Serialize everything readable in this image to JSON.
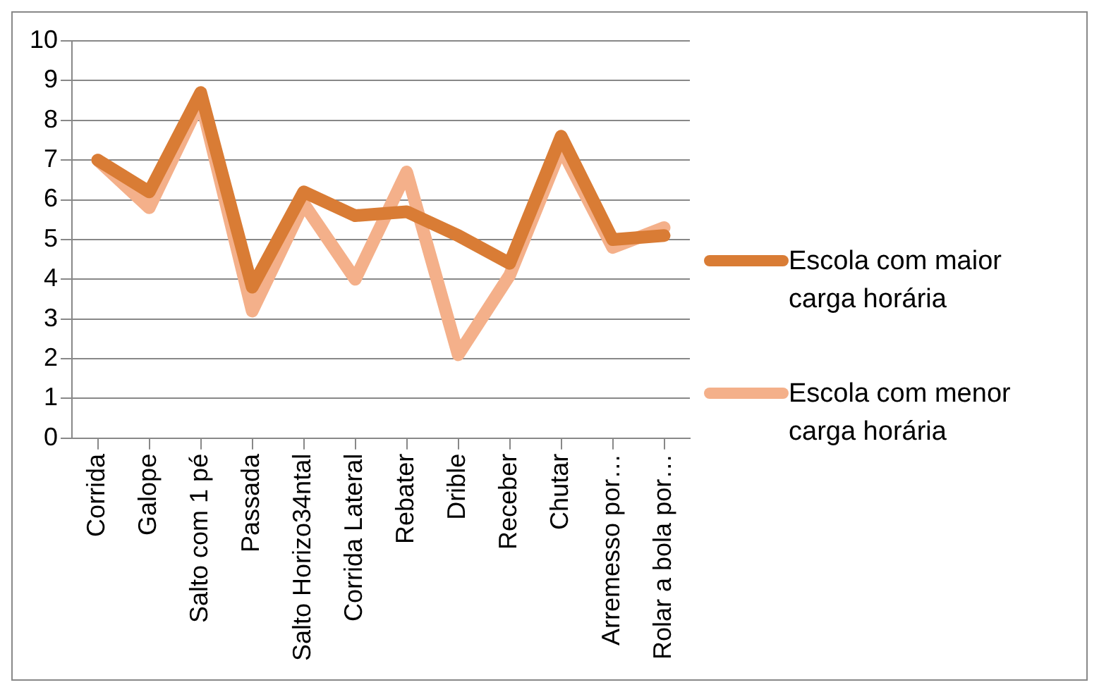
{
  "chart_data": {
    "type": "line",
    "categories": [
      "Corrida",
      "Galope",
      "Salto com 1 pé",
      "Passada",
      "Salto Horizo34ntal",
      "Corrida Lateral",
      "Rebater",
      "Drible",
      "Receber",
      "Chutar",
      "Arremesso por…",
      "Rolar a bola por…"
    ],
    "series": [
      {
        "name": "Escola com maior carga horária",
        "color": "#d97c35",
        "values": [
          7,
          6.2,
          8.7,
          3.8,
          6.2,
          5.6,
          5.7,
          5.1,
          4.4,
          7.6,
          5.0,
          5.1
        ]
      },
      {
        "name": "Escola com menor carga horária",
        "color": "#f4b08a",
        "values": [
          7,
          5.8,
          8.5,
          3.2,
          5.9,
          4.0,
          6.7,
          2.1,
          4.1,
          7.3,
          4.8,
          5.3
        ]
      }
    ],
    "ylim": [
      0,
      10
    ],
    "yticks": [
      0,
      1,
      2,
      3,
      4,
      5,
      6,
      7,
      8,
      9,
      10
    ],
    "grid": "y",
    "legend": "right",
    "marker": "none",
    "line_style": "solid"
  }
}
